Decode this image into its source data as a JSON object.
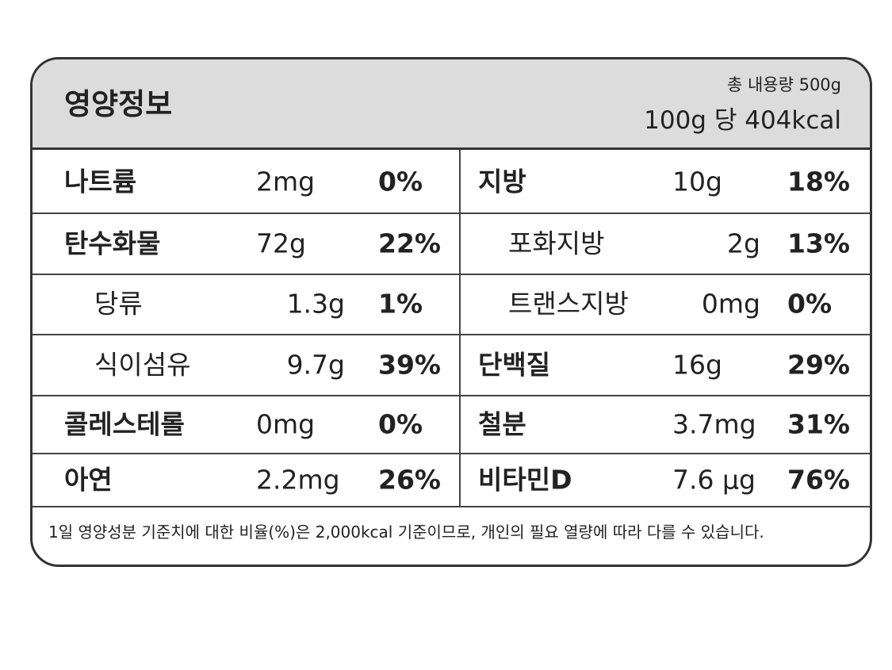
{
  "header": {
    "title": "영양정보",
    "total": "총 내용량 500g",
    "per": "100g 당 404kcal"
  },
  "table": {
    "rows": [
      [
        {
          "name": "나트륨",
          "amount": "2mg",
          "percent": "0%"
        },
        {
          "name": "지방",
          "amount": "10g",
          "percent": "18%"
        }
      ],
      [
        {
          "name": "탄수화물",
          "amount": "72g",
          "percent": "22%"
        },
        {
          "name": "포화지방",
          "amount": "2g",
          "percent": "13%"
        }
      ],
      [
        {
          "name": "당류",
          "amount": "1.3g",
          "percent": "1%"
        },
        {
          "name": "트랜스지방",
          "amount": "0mg",
          "percent": "0%"
        }
      ],
      [
        {
          "name": "식이섬유",
          "amount": "9.7g",
          "percent": "39%"
        },
        {
          "name": "단백질",
          "amount": "16g",
          "percent": "29%"
        }
      ],
      [
        {
          "name": "콜레스테롤",
          "amount": "0mg",
          "percent": "0%"
        },
        {
          "name": "철분",
          "amount": "3.7mg",
          "percent": "31%"
        }
      ],
      [
        {
          "name": "아연",
          "amount": "2.2mg",
          "percent": "26%"
        },
        {
          "name": "비타민D",
          "amount": "7.6 µg",
          "percent": "76%"
        }
      ]
    ]
  },
  "footer": "1일 영양성분 기준치에 대한 비율(%)은 2,000kcal 기준이므로, 개인의 필요 열량에 따라 다를 수 있습니다."
}
